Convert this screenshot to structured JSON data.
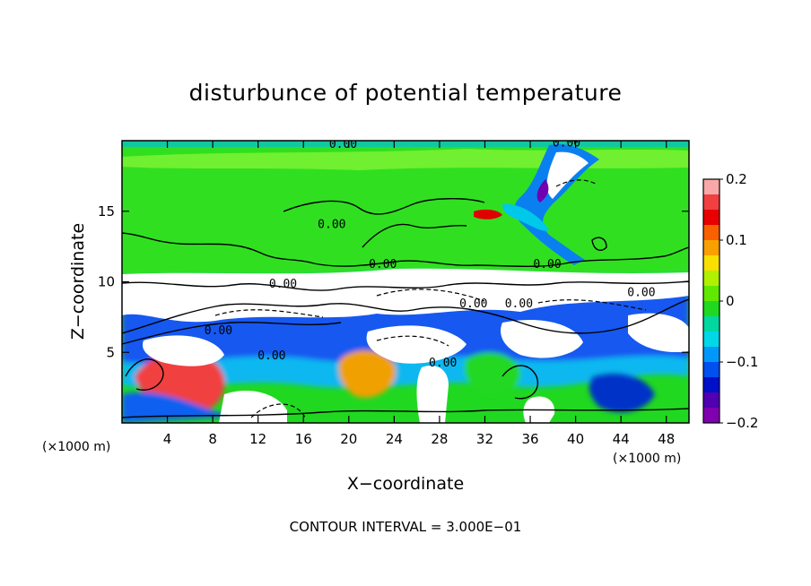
{
  "chart_data": {
    "type": "heatmap",
    "title": "disturbunce of potential temperature",
    "xlabel": "X−coordinate",
    "ylabel": "Z−coordinate",
    "x_unit_left": "(×1000 m)",
    "x_unit_right": "(×1000 m)",
    "footer": "CONTOUR INTERVAL = 3.000E−01",
    "xlim": [
      0,
      50
    ],
    "ylim": [
      0,
      20
    ],
    "x_ticks": [
      4,
      8,
      12,
      16,
      20,
      24,
      28,
      32,
      36,
      40,
      44,
      48
    ],
    "y_ticks": [
      5,
      10,
      15
    ],
    "colorbar": {
      "range": [
        -0.2,
        0.2
      ],
      "ticks": [
        0.2,
        0.1,
        0,
        -0.1,
        -0.2
      ],
      "tick_labels": [
        "0.2",
        "0.1",
        "0",
        "−0.1",
        "−0.2"
      ],
      "colors": [
        "#f8a8a8",
        "#f04040",
        "#e80000",
        "#f86000",
        "#f8a000",
        "#f8e000",
        "#b0f000",
        "#60e800",
        "#20d820",
        "#00d8a0",
        "#00d8e8",
        "#0098f8",
        "#0050f0",
        "#0010c8",
        "#5000b0",
        "#8000b0"
      ]
    },
    "contour_labels": [
      {
        "text": "0.00",
        "x": 19.5,
        "y": 19.5
      },
      {
        "text": "0.00",
        "x": 39.2,
        "y": 19.6
      },
      {
        "text": "0.00",
        "x": 18.5,
        "y": 13.8
      },
      {
        "text": "0.00",
        "x": 23.0,
        "y": 11.0
      },
      {
        "text": "0.00",
        "x": 37.5,
        "y": 11.0
      },
      {
        "text": "0.00",
        "x": 14.2,
        "y": 9.6
      },
      {
        "text": "0.00",
        "x": 31.0,
        "y": 8.2
      },
      {
        "text": "0.00",
        "x": 35.0,
        "y": 8.2
      },
      {
        "text": "0.00",
        "x": 8.5,
        "y": 6.3
      },
      {
        "text": "0.00",
        "x": 13.2,
        "y": 4.5
      },
      {
        "text": "0.00",
        "x": 28.3,
        "y": 4.0
      },
      {
        "text": "0.00",
        "x": 45.8,
        "y": 9.0
      }
    ]
  }
}
